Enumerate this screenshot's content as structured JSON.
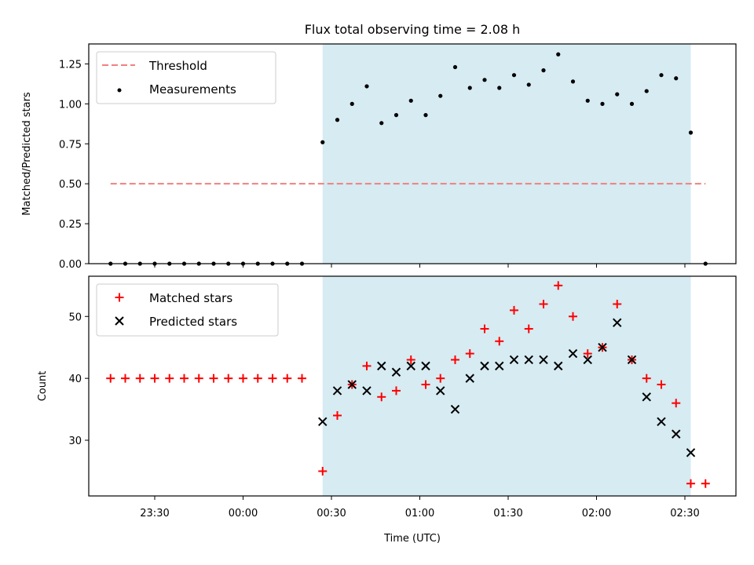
{
  "title": "Flux total observing time = 2.08 h",
  "colors": {
    "shade": "#add8e6",
    "threshold": "#f08080",
    "measurement": "#000000",
    "matched": "#ff0000",
    "predicted": "#000000"
  },
  "chart_data": [
    {
      "type": "scatter",
      "ylabel": "Matched/Predicted stars",
      "ylim": [
        0.0,
        1.375
      ],
      "yticks": [
        0.0,
        0.25,
        0.5,
        0.75,
        1.0,
        1.25
      ],
      "yticklabels": [
        "0.00",
        "0.25",
        "0.50",
        "0.75",
        "1.00",
        "1.25"
      ],
      "shaded_span": [
        "00:27",
        "02:32"
      ],
      "threshold": {
        "label": "Threshold",
        "value": 0.5,
        "x_range": [
          "23:15",
          "02:37"
        ]
      },
      "legend": {
        "placement": "upper-left",
        "entries": [
          "Threshold",
          "Measurements"
        ]
      },
      "series": [
        {
          "name": "Measurements",
          "x": [
            "23:15",
            "23:20",
            "23:25",
            "23:30",
            "23:35",
            "23:40",
            "23:45",
            "23:50",
            "23:55",
            "00:00",
            "00:05",
            "00:10",
            "00:15",
            "00:20",
            "00:27",
            "00:32",
            "00:37",
            "00:42",
            "00:47",
            "00:52",
            "00:57",
            "01:02",
            "01:07",
            "01:12",
            "01:17",
            "01:22",
            "01:27",
            "01:32",
            "01:37",
            "01:42",
            "01:47",
            "01:52",
            "01:57",
            "02:02",
            "02:07",
            "02:12",
            "02:17",
            "02:22",
            "02:27",
            "02:32",
            "02:37"
          ],
          "y": [
            0,
            0,
            0,
            0,
            0,
            0,
            0,
            0,
            0,
            0,
            0,
            0,
            0,
            0,
            0.76,
            0.9,
            1.0,
            1.11,
            0.88,
            0.93,
            1.02,
            0.93,
            1.05,
            1.23,
            1.1,
            1.15,
            1.1,
            1.18,
            1.12,
            1.21,
            1.31,
            1.14,
            1.02,
            1.0,
            1.06,
            1.0,
            1.08,
            1.18,
            1.16,
            0.82,
            0
          ]
        }
      ]
    },
    {
      "type": "scatter",
      "xlabel": "Time (UTC)",
      "ylabel": "Count",
      "ylim": [
        21,
        56.5
      ],
      "yticks": [
        30,
        40,
        50
      ],
      "yticklabels": [
        "30",
        "40",
        "50"
      ],
      "xticks": [
        "23:30",
        "00:00",
        "00:30",
        "01:00",
        "01:30",
        "02:00",
        "02:30"
      ],
      "shaded_span": [
        "00:27",
        "02:32"
      ],
      "legend": {
        "placement": "upper-left",
        "entries": [
          "Matched stars",
          "Predicted stars"
        ]
      },
      "series": [
        {
          "name": "Matched stars",
          "marker": "+",
          "x": [
            "23:15",
            "23:20",
            "23:25",
            "23:30",
            "23:35",
            "23:40",
            "23:45",
            "23:50",
            "23:55",
            "00:00",
            "00:05",
            "00:10",
            "00:15",
            "00:20",
            "00:27",
            "00:32",
            "00:37",
            "00:42",
            "00:47",
            "00:52",
            "00:57",
            "01:02",
            "01:07",
            "01:12",
            "01:17",
            "01:22",
            "01:27",
            "01:32",
            "01:37",
            "01:42",
            "01:47",
            "01:52",
            "01:57",
            "02:02",
            "02:07",
            "02:12",
            "02:17",
            "02:22",
            "02:27",
            "02:32",
            "02:37"
          ],
          "y": [
            40,
            40,
            40,
            40,
            40,
            40,
            40,
            40,
            40,
            40,
            40,
            40,
            40,
            40,
            25,
            34,
            39,
            42,
            37,
            38,
            43,
            39,
            40,
            43,
            44,
            48,
            46,
            51,
            48,
            52,
            55,
            50,
            44,
            45,
            52,
            43,
            40,
            39,
            36,
            23,
            23
          ]
        },
        {
          "name": "Predicted stars",
          "marker": "x",
          "x": [
            "00:27",
            "00:32",
            "00:37",
            "00:42",
            "00:47",
            "00:52",
            "00:57",
            "01:02",
            "01:07",
            "01:12",
            "01:17",
            "01:22",
            "01:27",
            "01:32",
            "01:37",
            "01:42",
            "01:47",
            "01:52",
            "01:57",
            "02:02",
            "02:07",
            "02:12",
            "02:17",
            "02:22",
            "02:27",
            "02:32"
          ],
          "y": [
            33,
            38,
            39,
            38,
            42,
            41,
            42,
            42,
            38,
            35,
            40,
            42,
            42,
            43,
            43,
            43,
            42,
            44,
            43,
            45,
            49,
            43,
            37,
            33,
            31,
            28
          ]
        }
      ]
    }
  ]
}
